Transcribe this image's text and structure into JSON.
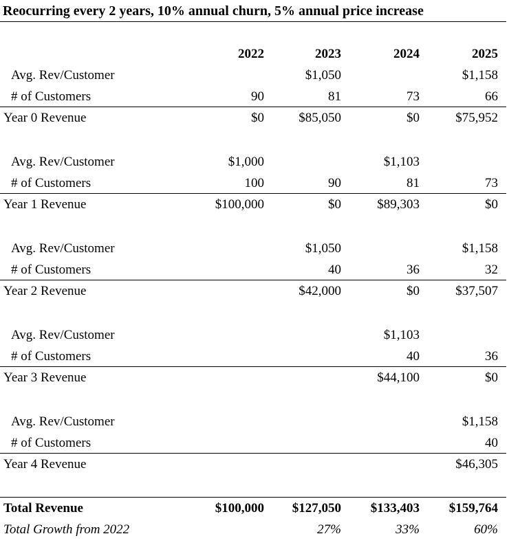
{
  "title": "Reocurring every 2 years, 10% annual churn, 5% annual price increase",
  "years": [
    "2022",
    "2023",
    "2024",
    "2025"
  ],
  "blocks": [
    {
      "avg_label": "Avg. Rev/Customer",
      "avg": [
        "",
        "$1,050",
        "",
        "$1,158"
      ],
      "cust_label": "# of Customers",
      "cust": [
        "90",
        "81",
        "73",
        "66"
      ],
      "rev_label": "Year 0 Revenue",
      "rev": [
        "$0",
        "$85,050",
        "$0",
        "$75,952"
      ]
    },
    {
      "avg_label": "Avg. Rev/Customer",
      "avg": [
        "$1,000",
        "",
        "$1,103",
        ""
      ],
      "cust_label": "# of Customers",
      "cust": [
        "100",
        "90",
        "81",
        "73"
      ],
      "rev_label": "Year 1 Revenue",
      "rev": [
        "$100,000",
        "$0",
        "$89,303",
        "$0"
      ]
    },
    {
      "avg_label": "Avg. Rev/Customer",
      "avg": [
        "",
        "$1,050",
        "",
        "$1,158"
      ],
      "cust_label": "# of Customers",
      "cust": [
        "",
        "40",
        "36",
        "32"
      ],
      "rev_label": "Year 2 Revenue",
      "rev": [
        "",
        "$42,000",
        "$0",
        "$37,507"
      ]
    },
    {
      "avg_label": "Avg. Rev/Customer",
      "avg": [
        "",
        "",
        "$1,103",
        ""
      ],
      "cust_label": "# of Customers",
      "cust": [
        "",
        "",
        "40",
        "36"
      ],
      "rev_label": "Year 3 Revenue",
      "rev": [
        "",
        "",
        "$44,100",
        "$0"
      ]
    },
    {
      "avg_label": "Avg. Rev/Customer",
      "avg": [
        "",
        "",
        "",
        "$1,158"
      ],
      "cust_label": "# of Customers",
      "cust": [
        "",
        "",
        "",
        "40"
      ],
      "rev_label": "Year 4 Revenue",
      "rev": [
        "",
        "",
        "",
        "$46,305"
      ]
    }
  ],
  "total": {
    "label": "Total Revenue",
    "values": [
      "$100,000",
      "$127,050",
      "$133,403",
      "$159,764"
    ]
  },
  "growth": {
    "label": "Total Growth from 2022",
    "values": [
      "",
      "27%",
      "33%",
      "60%"
    ]
  }
}
